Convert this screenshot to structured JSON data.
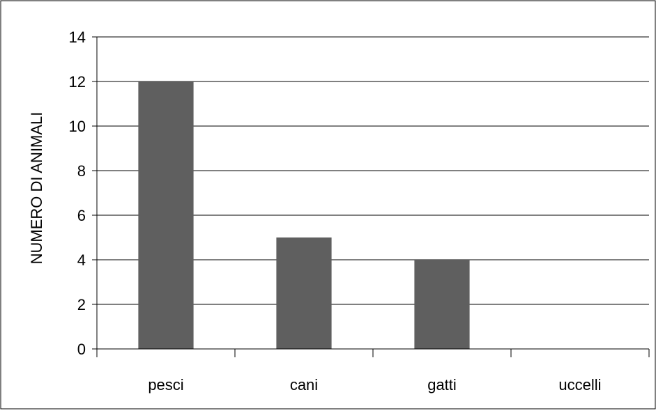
{
  "chart_data": {
    "type": "bar",
    "categories": [
      "pesci",
      "cani",
      "gatti",
      "uccelli"
    ],
    "values": [
      12,
      5,
      4,
      0
    ],
    "title": "",
    "xlabel": "",
    "ylabel": "NUMERO DI ANIMALI",
    "ylim": [
      0,
      14
    ],
    "yticks": [
      "0",
      "2",
      "4",
      "6",
      "8",
      "10",
      "12",
      "14"
    ],
    "grid": true,
    "legend": "none",
    "bar_color": "#5f5f5f",
    "grid_color": "#000000"
  }
}
